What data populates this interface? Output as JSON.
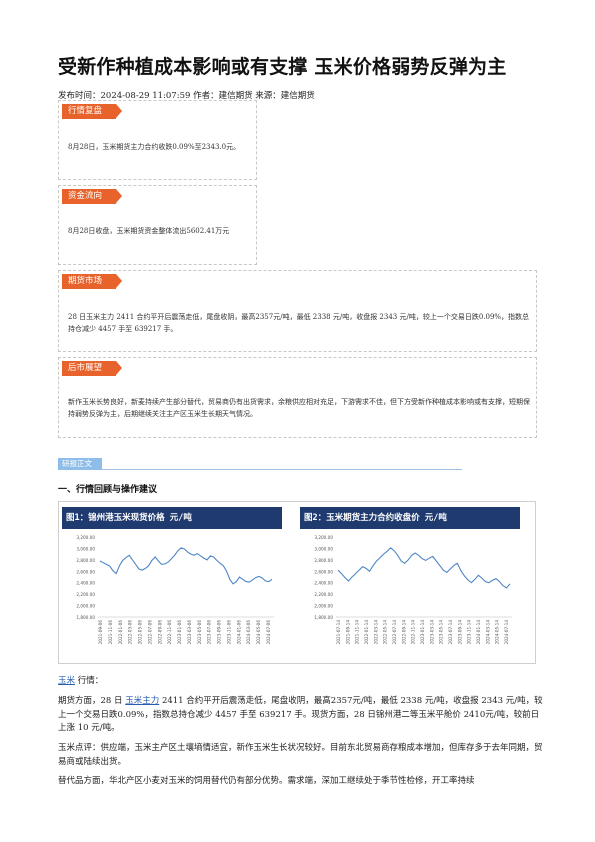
{
  "article": {
    "title": "受新作种植成本影响或有支撑 玉米价格弱势反弹为主",
    "meta": "发布时间：2024-08-29 11:07:59 作者：建信期货 来源：建信期货"
  },
  "boxes": [
    {
      "tag": "行情复盘",
      "text": "8月28日，玉米期货主力合约收跌0.09%至2343.0元。"
    },
    {
      "tag": "资金流向",
      "text": "8月28日收盘，玉米期货资金整体流出5602.41万元"
    },
    {
      "tag": "期货市场",
      "text": "28 日玉米主力 2411 合约平开后震荡走低，尾盘收阴，最高2357元/吨，最低 2338 元/吨，收盘报 2343 元/吨，较上一个交易日跌0.09%，指数总持仓减少 4457 手至 639217 手。"
    },
    {
      "tag": "后市展望",
      "text": "新作玉米长势良好，新麦持续产生部分替代，贸易商仍有出货需求，余粮供应相对充足，下游需求不佳，但下方受新作种植成本影响或有支撑，短期保持弱势反弹为主，后期继续关注主产区玉米生长期天气情况。"
    }
  ],
  "research": {
    "tag": "研报正文",
    "heading": "一、行情回顾与操作建议"
  },
  "colors": {
    "tag_orange": "#e8632b",
    "chart_header": "#1f3a6e",
    "line": "#4f86c6",
    "research_tag": "#8fbde9"
  },
  "chart_data": [
    {
      "type": "line",
      "title": "图1：锦州港玉米现货价格     元/吨",
      "ylim": [
        1800,
        3200
      ],
      "yticks": [
        "3,200.00",
        "3,000.00",
        "2,800.00",
        "2,600.00",
        "2,400.00",
        "2,200.00",
        "2,000.00",
        "1,800.00"
      ],
      "yvalues": [
        3200,
        3000,
        2800,
        2600,
        2400,
        2200,
        2000,
        1800
      ],
      "xticks": [
        "2021-09-06",
        "2021-11-06",
        "2022-01-06",
        "2022-03-06",
        "2022-05-06",
        "2022-07-06",
        "2022-09-06",
        "2022-11-06",
        "2023-01-06",
        "2023-03-06",
        "2023-05-06",
        "2023-07-06",
        "2023-09-06",
        "2023-11-06",
        "2024-01-06",
        "2024-03-06",
        "2024-05-06",
        "2024-07-06"
      ],
      "series": [
        {
          "values": [
            2780,
            2750,
            2720,
            2690,
            2610,
            2560,
            2700,
            2790,
            2840,
            2880,
            2800,
            2720,
            2640,
            2620,
            2650,
            2700,
            2790,
            2850,
            2780,
            2720,
            2730,
            2760,
            2820,
            2880,
            2960,
            3010,
            2990,
            2940,
            2900,
            2880,
            2910,
            2870,
            2830,
            2800,
            2870,
            2850,
            2790,
            2740,
            2700,
            2600,
            2460,
            2380,
            2420,
            2500,
            2460,
            2420,
            2410,
            2450,
            2490,
            2510,
            2480,
            2430,
            2420,
            2460
          ]
        }
      ]
    },
    {
      "type": "line",
      "title": "图2：玉米期货主力合约收盘价      元/吨",
      "ylim": [
        1800,
        3200
      ],
      "yticks": [
        "3,200.00",
        "3,000.00",
        "2,800.00",
        "2,600.00",
        "2,400.00",
        "2,200.00",
        "2,000.00",
        "1,800.00"
      ],
      "yvalues": [
        3200,
        3000,
        2800,
        2600,
        2400,
        2200,
        2000,
        1800
      ],
      "xticks": [
        "2021-07-14",
        "2021-09-14",
        "2021-11-14",
        "2022-01-14",
        "2022-03-14",
        "2022-05-14",
        "2022-07-14",
        "2022-09-14",
        "2022-11-14",
        "2023-01-14",
        "2023-03-14",
        "2023-05-14",
        "2023-07-14",
        "2023-09-14",
        "2023-11-14",
        "2024-01-14",
        "2024-03-14",
        "2024-05-14",
        "2024-07-14"
      ],
      "series": [
        {
          "values": [
            2620,
            2560,
            2490,
            2430,
            2500,
            2560,
            2620,
            2680,
            2650,
            2600,
            2700,
            2780,
            2840,
            2900,
            2950,
            3010,
            2960,
            2880,
            2780,
            2740,
            2800,
            2880,
            2920,
            2880,
            2820,
            2790,
            2830,
            2860,
            2780,
            2700,
            2620,
            2580,
            2640,
            2700,
            2740,
            2610,
            2520,
            2450,
            2400,
            2460,
            2530,
            2480,
            2420,
            2400,
            2440,
            2470,
            2420,
            2350,
            2310,
            2380
          ]
        }
      ]
    }
  ],
  "body": {
    "p1_link": "玉米",
    "p1_rest": " 行情：",
    "p2_a": "期货方面，28 日 ",
    "p2_link": "玉米主力",
    "p2_b": " 2411 合约平开后震荡走低，尾盘收阴，最高2357元/吨，最低 2338 元/吨，收盘报 2343 元/吨，较上一个交易日跌0.09%，指数总持仓减少 4457 手至 639217 手。现货方面，28 日锦州港二等玉米平舱价 2410元/吨，较前日上涨 10 元/吨。",
    "p3": "玉米点评：供应端，玉米主产区土壤墒情适宜，新作玉米生长状况较好。目前东北贸易商存粮成本增加，但库存多于去年同期，贸易商或陆续出货。",
    "p4": "替代品方面，华北产区小麦对玉米的饲用替代仍有部分优势。需求端，深加工继续处于季节性检修，开工率持续"
  }
}
